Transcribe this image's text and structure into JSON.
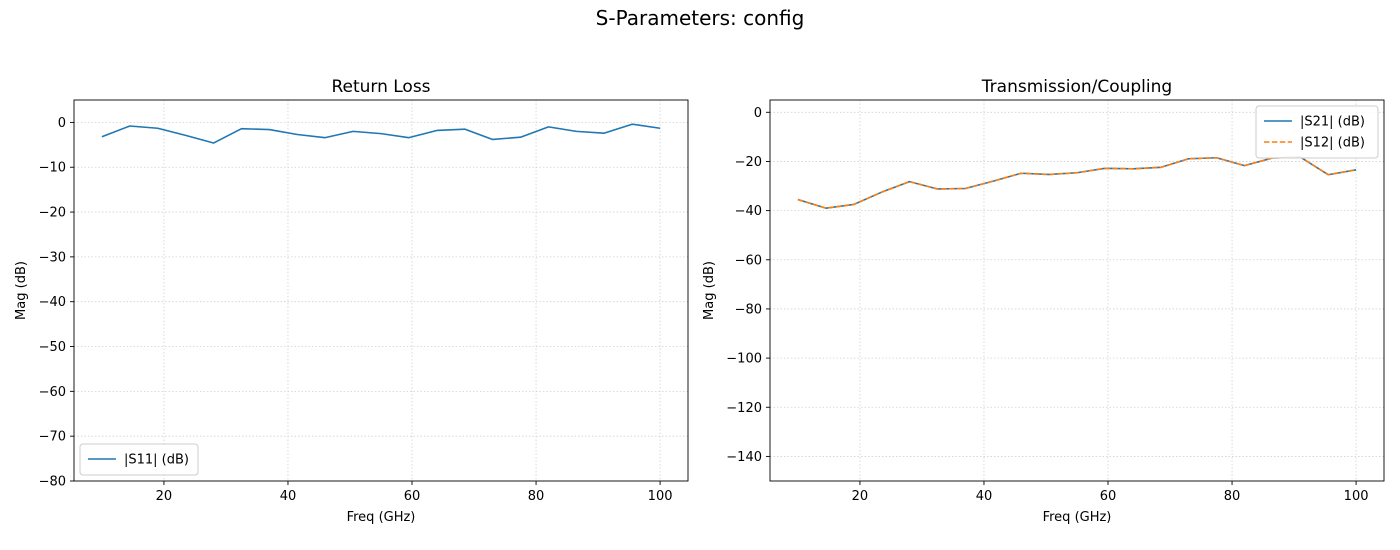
{
  "suptitle": "S-Parameters: config",
  "chart_data": [
    {
      "type": "line",
      "title": "Return Loss",
      "xlabel": "Freq (GHz)",
      "ylabel": "Mag (dB)",
      "xlim": [
        5.5,
        104.5
      ],
      "ylim": [
        -80,
        5
      ],
      "xticks": [
        20,
        40,
        60,
        80,
        100
      ],
      "yticks": [
        -80,
        -70,
        -60,
        -50,
        -40,
        -30,
        -20,
        -10,
        0
      ],
      "grid": true,
      "legend": "lower left",
      "x": [
        10,
        14.5,
        19,
        23.5,
        28,
        32.5,
        37,
        41.5,
        46,
        50.5,
        55,
        59.5,
        64,
        68.5,
        73,
        77.5,
        82,
        86.5,
        91,
        95.5,
        100
      ],
      "series": [
        {
          "name": "|S11| (dB)",
          "color": "#1f77b4",
          "dash": "solid",
          "values": [
            -3.2,
            -0.8,
            -1.3,
            -2.9,
            -4.6,
            -1.4,
            -1.6,
            -2.7,
            -3.4,
            -2.0,
            -2.5,
            -3.4,
            -1.8,
            -1.5,
            -3.8,
            -3.3,
            -1.0,
            -2.0,
            -2.4,
            -0.4,
            -1.3
          ]
        }
      ]
    },
    {
      "type": "line",
      "title": "Transmission/Coupling",
      "xlabel": "Freq (GHz)",
      "ylabel": "Mag (dB)",
      "xlim": [
        5.5,
        104.5
      ],
      "ylim": [
        -150,
        5
      ],
      "xticks": [
        20,
        40,
        60,
        80,
        100
      ],
      "yticks": [
        -140,
        -120,
        -100,
        -80,
        -60,
        -40,
        -20,
        0
      ],
      "grid": true,
      "legend": "upper right",
      "x": [
        10,
        14.5,
        19,
        23.5,
        28,
        32.5,
        37,
        41.5,
        46,
        50.5,
        55,
        59.5,
        64,
        68.5,
        73,
        77.5,
        82,
        86.5,
        91,
        95.5,
        100
      ],
      "series": [
        {
          "name": "|S21| (dB)",
          "color": "#1f77b4",
          "dash": "solid",
          "values": [
            -35.5,
            -39.0,
            -37.5,
            -32.5,
            -28.2,
            -31.2,
            -31.0,
            -28.0,
            -24.8,
            -25.3,
            -24.6,
            -22.8,
            -23.0,
            -22.4,
            -18.9,
            -18.5,
            -21.7,
            -18.6,
            -18.2,
            -25.4,
            -23.4
          ]
        },
        {
          "name": "|S12| (dB)",
          "color": "#ff7f0e",
          "dash": "dashed",
          "values": [
            -35.5,
            -39.0,
            -37.5,
            -32.5,
            -28.2,
            -31.2,
            -31.0,
            -28.0,
            -24.8,
            -25.3,
            -24.6,
            -22.8,
            -23.0,
            -22.4,
            -18.9,
            -18.5,
            -21.7,
            -18.6,
            -18.2,
            -25.4,
            -23.4
          ]
        }
      ]
    }
  ]
}
